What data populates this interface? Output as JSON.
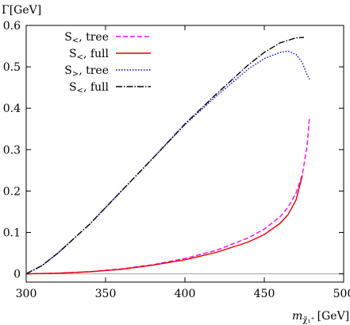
{
  "chart_data": {
    "type": "line",
    "title": "",
    "ylabel": "Γ[GeV]",
    "xlabel": {
      "prefix": "m",
      "subscript": "χ̃₁⁺",
      "suffix": "[GeV]"
    },
    "xlim": [
      300,
      500
    ],
    "ylim": [
      -0.02,
      0.6
    ],
    "xticks": [
      300,
      350,
      400,
      450,
      500
    ],
    "yticks": [
      0,
      0.1,
      0.2,
      0.3,
      0.4,
      0.5,
      0.6
    ],
    "xtick_labels": [
      "300",
      "350",
      "400",
      "450",
      "500"
    ],
    "ytick_labels": [
      "0",
      "0.1",
      "0.2",
      "0.3",
      "0.4",
      "0.5",
      "0.6"
    ],
    "zero_line": true,
    "grid": false,
    "legend_position": "top-left",
    "series": [
      {
        "name_main": "S",
        "name_sub": "<",
        "name_rest": ", tree",
        "color": "#ff00ff",
        "dash": "6,3",
        "x": [
          300,
          320,
          340,
          360,
          380,
          400,
          420,
          440,
          450,
          460,
          465,
          470,
          474,
          477,
          478.5
        ],
        "y": [
          0,
          0.0015,
          0.005,
          0.012,
          0.022,
          0.037,
          0.057,
          0.087,
          0.108,
          0.138,
          0.161,
          0.195,
          0.24,
          0.31,
          0.38
        ]
      },
      {
        "name_main": "S",
        "name_sub": "<",
        "name_rest": ", full",
        "color": "#e00000",
        "dash": "",
        "x": [
          300,
          320,
          340,
          360,
          380,
          400,
          420,
          440,
          450,
          460,
          465,
          470,
          474
        ],
        "y": [
          0,
          0.0015,
          0.005,
          0.011,
          0.021,
          0.034,
          0.052,
          0.077,
          0.095,
          0.122,
          0.143,
          0.178,
          0.238
        ]
      },
      {
        "name_main": "S",
        "name_sub": ">",
        "name_rest": ", tree",
        "color": "#0000ff",
        "dash": "1.5,2",
        "x": [
          300,
          310,
          320,
          340,
          360,
          380,
          400,
          420,
          440,
          450,
          460,
          465,
          470,
          474,
          477,
          478.5
        ],
        "y": [
          0,
          0.02,
          0.05,
          0.12,
          0.2,
          0.28,
          0.36,
          0.43,
          0.495,
          0.52,
          0.535,
          0.538,
          0.53,
          0.51,
          0.48,
          0.47
        ]
      },
      {
        "name_main": "S",
        "name_sub": "<",
        "name_rest": ", full",
        "color": "#000000",
        "dash": "8,2,1.5,2",
        "x": [
          300,
          310,
          320,
          340,
          360,
          380,
          400,
          420,
          440,
          450,
          460,
          470,
          475
        ],
        "y": [
          0,
          0.02,
          0.05,
          0.12,
          0.2,
          0.28,
          0.362,
          0.435,
          0.505,
          0.535,
          0.558,
          0.57,
          0.571
        ]
      }
    ]
  }
}
